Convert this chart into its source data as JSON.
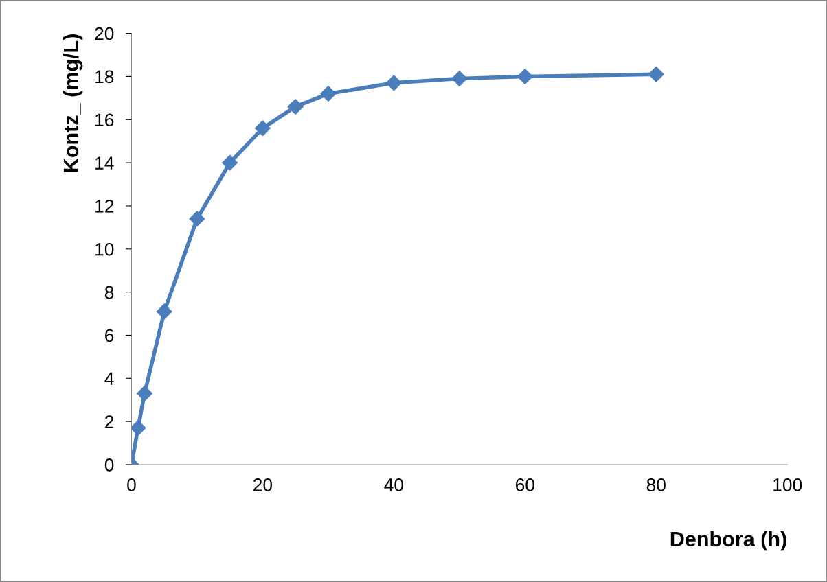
{
  "chart_data": {
    "type": "line",
    "xlabel": "Denbora (h)",
    "ylabel": "Kontz_ (mg/L)",
    "series": [
      {
        "color": "#4a7ebb",
        "x": [
          0,
          1,
          2,
          5,
          10,
          15,
          20,
          25,
          30,
          40,
          50,
          60,
          80
        ],
        "values": [
          0,
          1.7,
          3.3,
          7.1,
          11.4,
          14.0,
          15.6,
          16.6,
          17.2,
          17.7,
          17.9,
          18.0,
          18.1
        ]
      }
    ],
    "xlim": [
      0,
      100
    ],
    "xticks": [
      0,
      20,
      40,
      60,
      80,
      100
    ],
    "ylim": [
      0,
      20
    ],
    "yticks": [
      0,
      2,
      4,
      6,
      8,
      10,
      12,
      14,
      16,
      18,
      20
    ],
    "grid": false,
    "marker": "diamond",
    "line_style": "solid"
  }
}
